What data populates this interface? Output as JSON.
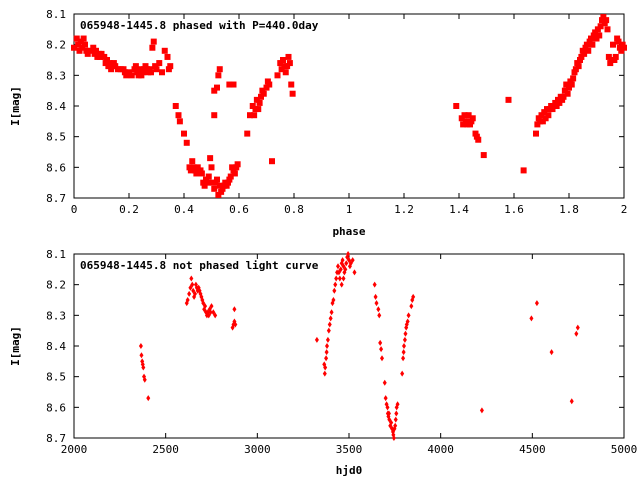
{
  "colors": {
    "points": "#ff0000",
    "axes": "#000000",
    "background": "#ffffff"
  },
  "chart_data": [
    {
      "type": "scatter",
      "title": "065948-1445.8 phased with P=440.0day",
      "xlabel": "phase",
      "ylabel": "I[mag]",
      "xlim": [
        0,
        2
      ],
      "ylim": [
        8.1,
        8.7
      ],
      "y_inverted": true,
      "x_ticks": [
        "0",
        "0.2",
        "0.4",
        "0.6",
        "0.8",
        "1",
        "1.2",
        "1.4",
        "1.6",
        "1.8",
        "2"
      ],
      "y_ticks": [
        "8.1",
        "8.2",
        "8.3",
        "8.4",
        "8.5",
        "8.6",
        "8.7"
      ],
      "grid": false,
      "marker": "filled-square",
      "points": [
        [
          0.0,
          8.21
        ],
        [
          0.01,
          8.18
        ],
        [
          0.015,
          8.2
        ],
        [
          0.02,
          8.22
        ],
        [
          0.025,
          8.19
        ],
        [
          0.03,
          8.21
        ],
        [
          0.035,
          8.18
        ],
        [
          0.04,
          8.2
        ],
        [
          0.045,
          8.22
        ],
        [
          0.05,
          8.23
        ],
        [
          0.06,
          8.22
        ],
        [
          0.07,
          8.21
        ],
        [
          0.075,
          8.23
        ],
        [
          0.08,
          8.22
        ],
        [
          0.085,
          8.24
        ],
        [
          0.09,
          8.23
        ],
        [
          0.095,
          8.24
        ],
        [
          0.1,
          8.23
        ],
        [
          0.11,
          8.24
        ],
        [
          0.115,
          8.26
        ],
        [
          0.12,
          8.25
        ],
        [
          0.125,
          8.27
        ],
        [
          0.13,
          8.26
        ],
        [
          0.135,
          8.28
        ],
        [
          0.14,
          8.27
        ],
        [
          0.145,
          8.26
        ],
        [
          0.15,
          8.27
        ],
        [
          0.16,
          8.28
        ],
        [
          0.17,
          8.28
        ],
        [
          0.18,
          8.28
        ],
        [
          0.185,
          8.29
        ],
        [
          0.19,
          8.3
        ],
        [
          0.2,
          8.29
        ],
        [
          0.21,
          8.3
        ],
        [
          0.22,
          8.28
        ],
        [
          0.225,
          8.27
        ],
        [
          0.23,
          8.29
        ],
        [
          0.235,
          8.3
        ],
        [
          0.24,
          8.28
        ],
        [
          0.245,
          8.3
        ],
        [
          0.25,
          8.29
        ],
        [
          0.255,
          8.28
        ],
        [
          0.26,
          8.27
        ],
        [
          0.265,
          8.28
        ],
        [
          0.27,
          8.29
        ],
        [
          0.275,
          8.28
        ],
        [
          0.28,
          8.29
        ],
        [
          0.285,
          8.21
        ],
        [
          0.29,
          8.19
        ],
        [
          0.295,
          8.27
        ],
        [
          0.3,
          8.28
        ],
        [
          0.31,
          8.26
        ],
        [
          0.32,
          8.29
        ],
        [
          0.33,
          8.22
        ],
        [
          0.34,
          8.24
        ],
        [
          0.345,
          8.28
        ],
        [
          0.35,
          8.27
        ],
        [
          0.37,
          8.4
        ],
        [
          0.38,
          8.43
        ],
        [
          0.385,
          8.45
        ],
        [
          0.4,
          8.49
        ],
        [
          0.41,
          8.52
        ],
        [
          0.42,
          8.6
        ],
        [
          0.425,
          8.61
        ],
        [
          0.43,
          8.58
        ],
        [
          0.435,
          8.6
        ],
        [
          0.44,
          8.61
        ],
        [
          0.445,
          8.62
        ],
        [
          0.45,
          8.6
        ],
        [
          0.46,
          8.61
        ],
        [
          0.465,
          8.62
        ],
        [
          0.47,
          8.65
        ],
        [
          0.475,
          8.66
        ],
        [
          0.48,
          8.64
        ],
        [
          0.485,
          8.65
        ],
        [
          0.49,
          8.63
        ],
        [
          0.495,
          8.57
        ],
        [
          0.5,
          8.6
        ],
        [
          0.505,
          8.65
        ],
        [
          0.51,
          8.67
        ],
        [
          0.515,
          8.65
        ],
        [
          0.52,
          8.64
        ],
        [
          0.525,
          8.69
        ],
        [
          0.53,
          8.66
        ],
        [
          0.535,
          8.68
        ],
        [
          0.54,
          8.67
        ],
        [
          0.545,
          8.66
        ],
        [
          0.55,
          8.65
        ],
        [
          0.555,
          8.66
        ],
        [
          0.56,
          8.65
        ],
        [
          0.565,
          8.64
        ],
        [
          0.57,
          8.63
        ],
        [
          0.575,
          8.6
        ],
        [
          0.58,
          8.61
        ],
        [
          0.585,
          8.62
        ],
        [
          0.59,
          8.6
        ],
        [
          0.595,
          8.59
        ],
        [
          0.51,
          8.35
        ],
        [
          0.52,
          8.34
        ],
        [
          0.525,
          8.3
        ],
        [
          0.53,
          8.28
        ],
        [
          0.51,
          8.43
        ],
        [
          0.565,
          8.33
        ],
        [
          0.58,
          8.33
        ],
        [
          0.63,
          8.49
        ],
        [
          0.64,
          8.43
        ],
        [
          0.65,
          8.4
        ],
        [
          0.655,
          8.43
        ],
        [
          0.66,
          8.41
        ],
        [
          0.665,
          8.38
        ],
        [
          0.67,
          8.41
        ],
        [
          0.675,
          8.39
        ],
        [
          0.68,
          8.37
        ],
        [
          0.685,
          8.35
        ],
        [
          0.69,
          8.36
        ],
        [
          0.7,
          8.34
        ],
        [
          0.705,
          8.32
        ],
        [
          0.71,
          8.33
        ],
        [
          0.72,
          8.58
        ],
        [
          0.74,
          8.3
        ],
        [
          0.75,
          8.26
        ],
        [
          0.755,
          8.28
        ],
        [
          0.76,
          8.25
        ],
        [
          0.765,
          8.27
        ],
        [
          0.77,
          8.29
        ],
        [
          0.775,
          8.27
        ],
        [
          0.78,
          8.24
        ],
        [
          0.785,
          8.26
        ],
        [
          0.79,
          8.33
        ],
        [
          0.795,
          8.36
        ],
        [
          1.39,
          8.4
        ],
        [
          1.41,
          8.44
        ],
        [
          1.415,
          8.46
        ],
        [
          1.42,
          8.43
        ],
        [
          1.425,
          8.45
        ],
        [
          1.43,
          8.46
        ],
        [
          1.435,
          8.43
        ],
        [
          1.44,
          8.46
        ],
        [
          1.445,
          8.45
        ],
        [
          1.45,
          8.44
        ],
        [
          1.46,
          8.49
        ],
        [
          1.465,
          8.5
        ],
        [
          1.47,
          8.51
        ],
        [
          1.49,
          8.56
        ],
        [
          1.58,
          8.38
        ],
        [
          1.635,
          8.61
        ],
        [
          1.68,
          8.49
        ],
        [
          1.685,
          8.46
        ],
        [
          1.69,
          8.44
        ],
        [
          1.695,
          8.45
        ],
        [
          1.7,
          8.43
        ],
        [
          1.705,
          8.45
        ],
        [
          1.71,
          8.42
        ],
        [
          1.715,
          8.44
        ],
        [
          1.72,
          8.41
        ],
        [
          1.725,
          8.43
        ],
        [
          1.73,
          8.41
        ],
        [
          1.735,
          8.4
        ],
        [
          1.74,
          8.41
        ],
        [
          1.745,
          8.4
        ],
        [
          1.75,
          8.39
        ],
        [
          1.755,
          8.4
        ],
        [
          1.76,
          8.38
        ],
        [
          1.765,
          8.39
        ],
        [
          1.77,
          8.37
        ],
        [
          1.775,
          8.38
        ],
        [
          1.78,
          8.37
        ],
        [
          1.785,
          8.35
        ],
        [
          1.79,
          8.33
        ],
        [
          1.795,
          8.36
        ],
        [
          1.8,
          8.34
        ],
        [
          1.805,
          8.32
        ],
        [
          1.81,
          8.33
        ],
        [
          1.815,
          8.31
        ],
        [
          1.82,
          8.29
        ],
        [
          1.825,
          8.28
        ],
        [
          1.83,
          8.26
        ],
        [
          1.835,
          8.27
        ],
        [
          1.84,
          8.25
        ],
        [
          1.845,
          8.24
        ],
        [
          1.85,
          8.22
        ],
        [
          1.855,
          8.23
        ],
        [
          1.86,
          8.21
        ],
        [
          1.865,
          8.2
        ],
        [
          1.87,
          8.22
        ],
        [
          1.875,
          8.19
        ],
        [
          1.88,
          8.18
        ],
        [
          1.885,
          8.2
        ],
        [
          1.89,
          8.17
        ],
        [
          1.895,
          8.16
        ],
        [
          1.9,
          8.18
        ],
        [
          1.905,
          8.15
        ],
        [
          1.91,
          8.17
        ],
        [
          1.915,
          8.14
        ],
        [
          1.92,
          8.12
        ],
        [
          1.925,
          8.11
        ],
        [
          1.93,
          8.13
        ],
        [
          1.935,
          8.12
        ],
        [
          1.94,
          8.15
        ],
        [
          1.945,
          8.24
        ],
        [
          1.95,
          8.26
        ],
        [
          1.955,
          8.25
        ],
        [
          1.96,
          8.2
        ],
        [
          1.965,
          8.25
        ],
        [
          1.97,
          8.24
        ],
        [
          1.975,
          8.18
        ],
        [
          1.98,
          8.19
        ],
        [
          1.985,
          8.21
        ],
        [
          1.99,
          8.22
        ],
        [
          1.995,
          8.2
        ],
        [
          2.0,
          8.21
        ]
      ]
    },
    {
      "type": "scatter",
      "title": "065948-1445.8 not phased light curve",
      "xlabel": "hjd0",
      "ylabel": "I[mag]",
      "xlim": [
        2000,
        5000
      ],
      "ylim": [
        8.1,
        8.7
      ],
      "y_inverted": true,
      "x_ticks": [
        "2000",
        "2500",
        "3000",
        "3500",
        "4000",
        "4500",
        "5000"
      ],
      "y_ticks": [
        "8.1",
        "8.2",
        "8.3",
        "8.4",
        "8.5",
        "8.6",
        "8.7"
      ],
      "grid": false,
      "marker": "small-diamond",
      "points": [
        [
          2365,
          8.4
        ],
        [
          2368,
          8.43
        ],
        [
          2372,
          8.45
        ],
        [
          2375,
          8.46
        ],
        [
          2378,
          8.47
        ],
        [
          2382,
          8.5
        ],
        [
          2386,
          8.51
        ],
        [
          2405,
          8.57
        ],
        [
          2615,
          8.26
        ],
        [
          2620,
          8.25
        ],
        [
          2628,
          8.23
        ],
        [
          2635,
          8.21
        ],
        [
          2640,
          8.18
        ],
        [
          2645,
          8.2
        ],
        [
          2650,
          8.22
        ],
        [
          2655,
          8.24
        ],
        [
          2660,
          8.23
        ],
        [
          2665,
          8.2
        ],
        [
          2670,
          8.21
        ],
        [
          2675,
          8.22
        ],
        [
          2680,
          8.21
        ],
        [
          2685,
          8.22
        ],
        [
          2690,
          8.23
        ],
        [
          2695,
          8.24
        ],
        [
          2700,
          8.25
        ],
        [
          2705,
          8.26
        ],
        [
          2710,
          8.28
        ],
        [
          2715,
          8.27
        ],
        [
          2720,
          8.29
        ],
        [
          2725,
          8.3
        ],
        [
          2730,
          8.29
        ],
        [
          2735,
          8.3
        ],
        [
          2740,
          8.28
        ],
        [
          2745,
          8.29
        ],
        [
          2750,
          8.27
        ],
        [
          2760,
          8.29
        ],
        [
          2770,
          8.3
        ],
        [
          2865,
          8.34
        ],
        [
          2870,
          8.33
        ],
        [
          2875,
          8.32
        ],
        [
          2880,
          8.33
        ],
        [
          2875,
          8.28
        ],
        [
          3325,
          8.38
        ],
        [
          3365,
          8.46
        ],
        [
          3368,
          8.49
        ],
        [
          3370,
          8.47
        ],
        [
          3375,
          8.44
        ],
        [
          3378,
          8.42
        ],
        [
          3380,
          8.4
        ],
        [
          3385,
          8.38
        ],
        [
          3390,
          8.35
        ],
        [
          3395,
          8.33
        ],
        [
          3400,
          8.31
        ],
        [
          3405,
          8.29
        ],
        [
          3410,
          8.26
        ],
        [
          3415,
          8.25
        ],
        [
          3420,
          8.22
        ],
        [
          3425,
          8.2
        ],
        [
          3430,
          8.18
        ],
        [
          3435,
          8.16
        ],
        [
          3440,
          8.14
        ],
        [
          3445,
          8.16
        ],
        [
          3450,
          8.18
        ],
        [
          3455,
          8.15
        ],
        [
          3460,
          8.13
        ],
        [
          3465,
          8.12
        ],
        [
          3470,
          8.14
        ],
        [
          3475,
          8.16
        ],
        [
          3480,
          8.15
        ],
        [
          3485,
          8.13
        ],
        [
          3490,
          8.11
        ],
        [
          3495,
          8.1
        ],
        [
          3500,
          8.12
        ],
        [
          3505,
          8.14
        ],
        [
          3510,
          8.13
        ],
        [
          3520,
          8.12
        ],
        [
          3530,
          8.16
        ],
        [
          3460,
          8.2
        ],
        [
          3470,
          8.18
        ],
        [
          3640,
          8.2
        ],
        [
          3645,
          8.24
        ],
        [
          3650,
          8.26
        ],
        [
          3660,
          8.28
        ],
        [
          3665,
          8.3
        ],
        [
          3670,
          8.39
        ],
        [
          3675,
          8.41
        ],
        [
          3680,
          8.44
        ],
        [
          3695,
          8.52
        ],
        [
          3700,
          8.57
        ],
        [
          3705,
          8.59
        ],
        [
          3710,
          8.6
        ],
        [
          3712,
          8.62
        ],
        [
          3715,
          8.63
        ],
        [
          3718,
          8.62
        ],
        [
          3720,
          8.64
        ],
        [
          3725,
          8.66
        ],
        [
          3730,
          8.65
        ],
        [
          3735,
          8.67
        ],
        [
          3740,
          8.68
        ],
        [
          3742,
          8.69
        ],
        [
          3745,
          8.7
        ],
        [
          3748,
          8.67
        ],
        [
          3752,
          8.66
        ],
        [
          3755,
          8.64
        ],
        [
          3758,
          8.62
        ],
        [
          3760,
          8.6
        ],
        [
          3765,
          8.59
        ],
        [
          3790,
          8.49
        ],
        [
          3795,
          8.44
        ],
        [
          3798,
          8.42
        ],
        [
          3800,
          8.4
        ],
        [
          3805,
          8.38
        ],
        [
          3808,
          8.36
        ],
        [
          3812,
          8.34
        ],
        [
          3815,
          8.33
        ],
        [
          3820,
          8.32
        ],
        [
          3825,
          8.3
        ],
        [
          3840,
          8.27
        ],
        [
          3845,
          8.25
        ],
        [
          3850,
          8.24
        ],
        [
          4225,
          8.61
        ],
        [
          4495,
          8.31
        ],
        [
          4525,
          8.26
        ],
        [
          4605,
          8.42
        ],
        [
          4715,
          8.58
        ],
        [
          4740,
          8.36
        ],
        [
          4748,
          8.34
        ]
      ]
    }
  ]
}
